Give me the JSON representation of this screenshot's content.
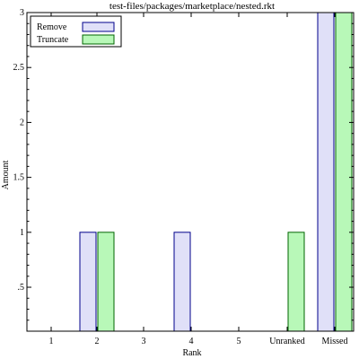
{
  "chart_data": {
    "type": "bar",
    "title": "test-files/packages/marketplace/nested.rkt",
    "xlabel": "Rank",
    "ylabel": "Amount",
    "categories": [
      "1",
      "2",
      "3",
      "4",
      "5",
      "Unranked",
      "Missed"
    ],
    "ylim": [
      0.1,
      3
    ],
    "yticks": [
      0.5,
      1,
      1.5,
      2,
      2.5,
      3
    ],
    "ytick_labels": [
      ".5",
      "1",
      "1.5",
      "2",
      "2.5",
      "3"
    ],
    "grid": false,
    "legend_position": "top-left",
    "series": [
      {
        "name": "Remove",
        "fill": "#e0e0f8",
        "stroke": "#00008b",
        "values": [
          0,
          1,
          0,
          1,
          0,
          0,
          3
        ]
      },
      {
        "name": "Truncate",
        "fill": "#b8f8b8",
        "stroke": "#006400",
        "values": [
          0,
          1,
          0,
          0,
          0,
          1,
          3
        ]
      }
    ]
  }
}
